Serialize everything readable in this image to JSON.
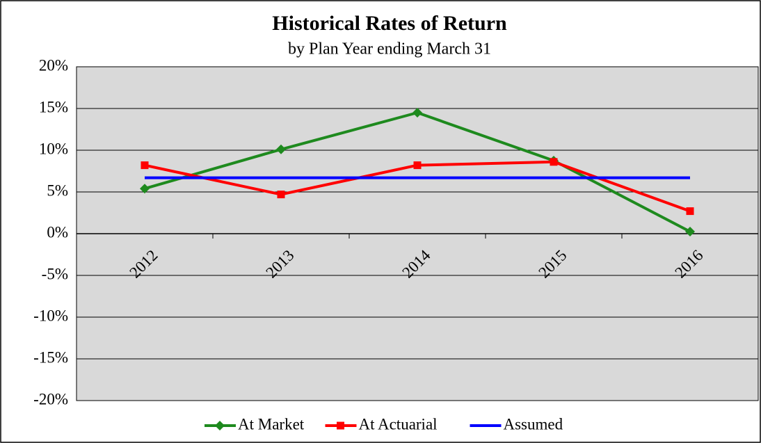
{
  "chart_data": {
    "type": "line",
    "title": "Historical Rates of Return",
    "subtitle": "by Plan Year ending March 31",
    "categories": [
      "2012",
      "2013",
      "2014",
      "2015",
      "2016"
    ],
    "series": [
      {
        "name": "At Market",
        "color": "#1e8a1e",
        "marker": "diamond",
        "values": [
          5.4,
          10.1,
          14.5,
          8.75,
          0.25
        ]
      },
      {
        "name": "At Actuarial",
        "color": "#ff0000",
        "marker": "square",
        "values": [
          8.2,
          4.7,
          8.2,
          8.6,
          2.7
        ]
      },
      {
        "name": "Assumed",
        "color": "#0000ff",
        "values": [
          6.7,
          6.7,
          6.7,
          6.7,
          6.7
        ]
      }
    ],
    "ylim": [
      -20,
      20
    ],
    "yticks": [
      {
        "value": -20,
        "label": "-20%"
      },
      {
        "value": -15,
        "label": "-15%"
      },
      {
        "value": -10,
        "label": "-10%"
      },
      {
        "value": -5,
        "label": "-5%"
      },
      {
        "value": 0,
        "label": "0%"
      },
      {
        "value": 5,
        "label": "5%"
      },
      {
        "value": 10,
        "label": "10%"
      },
      {
        "value": 15,
        "label": "15%"
      },
      {
        "value": 20,
        "label": "20%"
      }
    ],
    "grid": true,
    "legend": "bottom"
  }
}
